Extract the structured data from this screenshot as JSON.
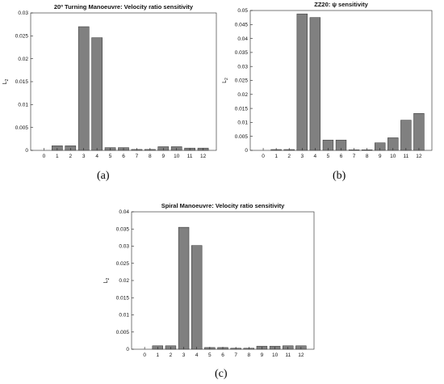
{
  "chart_data": [
    {
      "type": "bar",
      "title": "20º Turning Manoeuvre: Velocity ratio sensitivity",
      "ylabel": "L2",
      "caption": "(a)",
      "categories": [
        "0",
        "1",
        "2",
        "3",
        "4",
        "5",
        "6",
        "7",
        "8",
        "9",
        "10",
        "11",
        "12"
      ],
      "values": [
        0.0,
        0.001,
        0.001,
        0.027,
        0.0246,
        0.0006,
        0.0006,
        0.0002,
        0.0002,
        0.0008,
        0.0008,
        0.0005,
        0.0005
      ],
      "ylim": [
        0,
        0.03
      ],
      "yticks": [
        "0",
        "0.005",
        "0.01",
        "0.015",
        "0.02",
        "0.025",
        "0.03"
      ],
      "ytick_values": [
        0,
        0.005,
        0.01,
        0.015,
        0.02,
        0.025,
        0.03
      ]
    },
    {
      "type": "bar",
      "title": "ZZ20: ψ sensitivity",
      "ylabel": "L2",
      "caption": "(b)",
      "categories": [
        "0",
        "1",
        "2",
        "3",
        "4",
        "5",
        "6",
        "7",
        "8",
        "9",
        "10",
        "11",
        "12"
      ],
      "values": [
        0.0,
        0.0003,
        0.0003,
        0.0488,
        0.0475,
        0.0037,
        0.0037,
        0.0002,
        0.0002,
        0.0027,
        0.0045,
        0.0108,
        0.0132
      ],
      "ylim": [
        0,
        0.05
      ],
      "yticks": [
        "0",
        "0.005",
        "0.01",
        "0.015",
        "0.02",
        "0.025",
        "0.03",
        "0.035",
        "0.04",
        "0.045",
        "0.05"
      ],
      "ytick_values": [
        0,
        0.005,
        0.01,
        0.015,
        0.02,
        0.025,
        0.03,
        0.035,
        0.04,
        0.045,
        0.05
      ]
    },
    {
      "type": "bar",
      "title": "Spiral Manoeuvre: Velocity ratio sensitivity",
      "ylabel": "L2",
      "caption": "(c)",
      "categories": [
        "0",
        "1",
        "2",
        "3",
        "4",
        "5",
        "6",
        "7",
        "8",
        "9",
        "10",
        "11",
        "12"
      ],
      "values": [
        0.0,
        0.001,
        0.001,
        0.0355,
        0.0302,
        0.0005,
        0.0005,
        0.0003,
        0.0003,
        0.0009,
        0.0009,
        0.001,
        0.001
      ],
      "ylim": [
        0,
        0.04
      ],
      "yticks": [
        "0",
        "0.005",
        "0.01",
        "0.015",
        "0.02",
        "0.025",
        "0.03",
        "0.035",
        "0.04"
      ],
      "ytick_values": [
        0,
        0.005,
        0.01,
        0.015,
        0.02,
        0.025,
        0.03,
        0.035,
        0.04
      ]
    }
  ],
  "colors": {
    "bar": "#808080",
    "bar_stroke": "#2e2e2e",
    "axis": "#222222"
  }
}
